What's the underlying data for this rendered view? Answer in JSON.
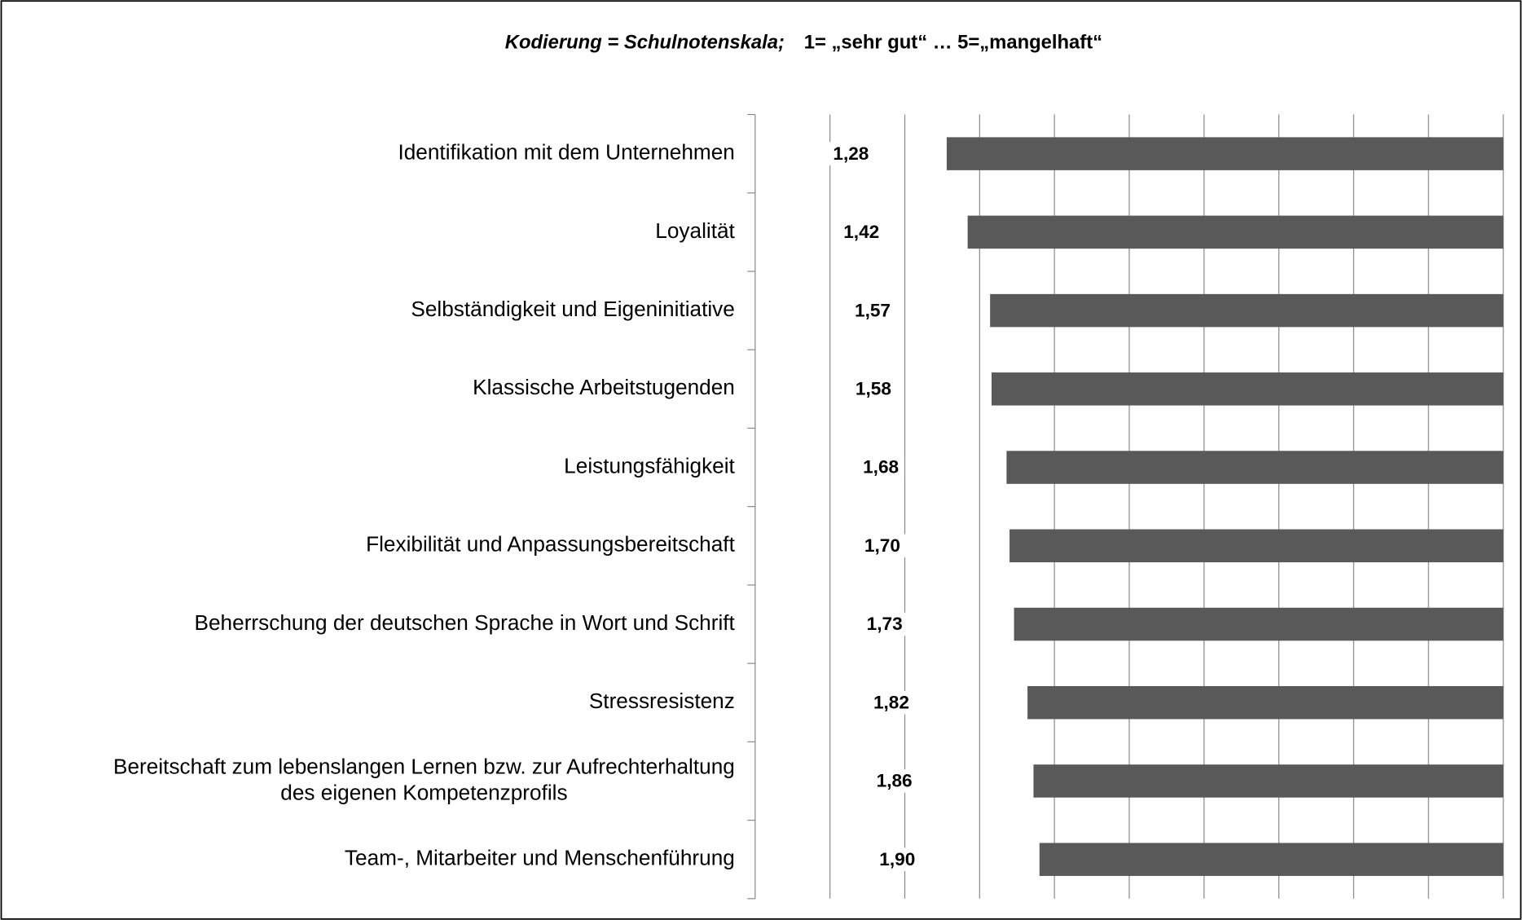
{
  "chart_data": {
    "type": "bar",
    "orientation": "horizontal",
    "title_parts": [
      "Kodierung = Schulnotenskala;",
      "1= „sehr gut“  …  5=„mangelhaft“"
    ],
    "categories": [
      "Identifikation mit dem Unternehmen",
      "Loyalität",
      "Selbständigkeit und Eigeninitiative",
      "Klassische Arbeitstugenden",
      "Leistungsfähigkeit",
      "Flexibilität und Anpassungsbereitschaft",
      "Beherrschung der deutschen Sprache in Wort und Schrift",
      "Stressresistenz",
      "Bereitschaft zum lebenslangen Lernen bzw. zur Aufrechterhaltung\ndes eigenen Kompetenzprofils",
      "Team-, Mitarbeiter und Menschenführung"
    ],
    "values": [
      1.28,
      1.42,
      1.57,
      1.58,
      1.68,
      1.7,
      1.73,
      1.82,
      1.86,
      1.9
    ],
    "value_labels": [
      "1,28",
      "1,42",
      "1,57",
      "1,58",
      "1,68",
      "1,70",
      "1,73",
      "1,82",
      "1,86",
      "1,90"
    ],
    "color": "#595959",
    "xlim": [
      0,
      5
    ],
    "xticks": [
      0.5,
      1,
      1.5,
      2,
      2.5,
      3,
      3.5,
      4,
      4.5,
      5
    ],
    "grid": true
  }
}
